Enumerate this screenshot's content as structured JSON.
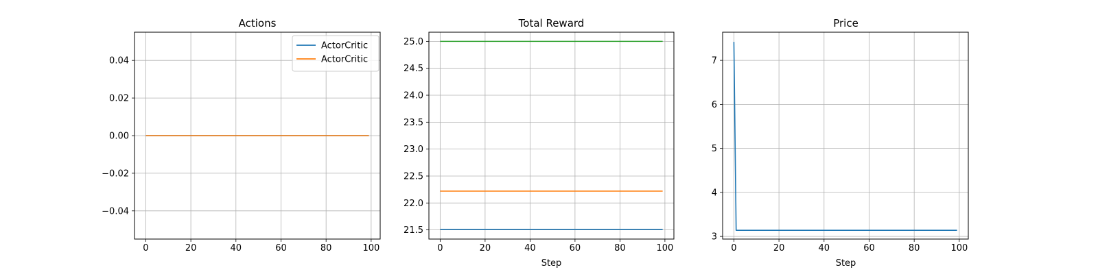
{
  "chart_data": [
    {
      "type": "line",
      "title": "Actions",
      "xlabel": "",
      "ylabel": "",
      "xlim": [
        -5,
        104
      ],
      "ylim": [
        -0.055,
        0.055
      ],
      "xticks": [
        0,
        20,
        40,
        60,
        80,
        100
      ],
      "xtick_labels": [
        "0",
        "20",
        "40",
        "60",
        "80",
        "100"
      ],
      "yticks": [
        -0.04,
        -0.02,
        0.0,
        0.02,
        0.04
      ],
      "ytick_labels": [
        "−0.04",
        "−0.02",
        "0.00",
        "0.02",
        "0.04"
      ],
      "grid": true,
      "legend": "top-right",
      "series": [
        {
          "name": "ActorCritic",
          "color": "#1f77b4",
          "x": [
            0,
            99
          ],
          "y": [
            0,
            0
          ]
        },
        {
          "name": "ActorCritic",
          "color": "#ff7f0e",
          "x": [
            0,
            99
          ],
          "y": [
            0,
            0
          ]
        }
      ]
    },
    {
      "type": "line",
      "title": "Total Reward",
      "xlabel": "Step",
      "ylabel": "",
      "xlim": [
        -5,
        104
      ],
      "ylim": [
        21.33,
        25.17
      ],
      "xticks": [
        0,
        20,
        40,
        60,
        80,
        100
      ],
      "xtick_labels": [
        "0",
        "20",
        "40",
        "60",
        "80",
        "100"
      ],
      "yticks": [
        21.5,
        22.0,
        22.5,
        23.0,
        23.5,
        24.0,
        24.5,
        25.0
      ],
      "ytick_labels": [
        "21.5",
        "22.0",
        "22.5",
        "23.0",
        "23.5",
        "24.0",
        "24.5",
        "25.0"
      ],
      "grid": true,
      "legend": "none",
      "series": [
        {
          "color": "#1f77b4",
          "x": [
            0,
            99
          ],
          "y": [
            21.51,
            21.51
          ]
        },
        {
          "color": "#ff7f0e",
          "x": [
            0,
            99
          ],
          "y": [
            22.22,
            22.22
          ]
        },
        {
          "color": "#2ca02c",
          "x": [
            0,
            99
          ],
          "y": [
            25.0,
            25.0
          ]
        }
      ]
    },
    {
      "type": "line",
      "title": "Price",
      "xlabel": "Step",
      "ylabel": "",
      "xlim": [
        -5,
        104
      ],
      "ylim": [
        2.94,
        7.64
      ],
      "xticks": [
        0,
        20,
        40,
        60,
        80,
        100
      ],
      "xtick_labels": [
        "0",
        "20",
        "40",
        "60",
        "80",
        "100"
      ],
      "yticks": [
        3,
        4,
        5,
        6,
        7
      ],
      "ytick_labels": [
        "3",
        "4",
        "5",
        "6",
        "7"
      ],
      "grid": true,
      "legend": "none",
      "series": [
        {
          "color": "#1f77b4",
          "x": [
            0,
            1,
            99
          ],
          "y": [
            7.42,
            3.14,
            3.14
          ]
        }
      ]
    }
  ]
}
